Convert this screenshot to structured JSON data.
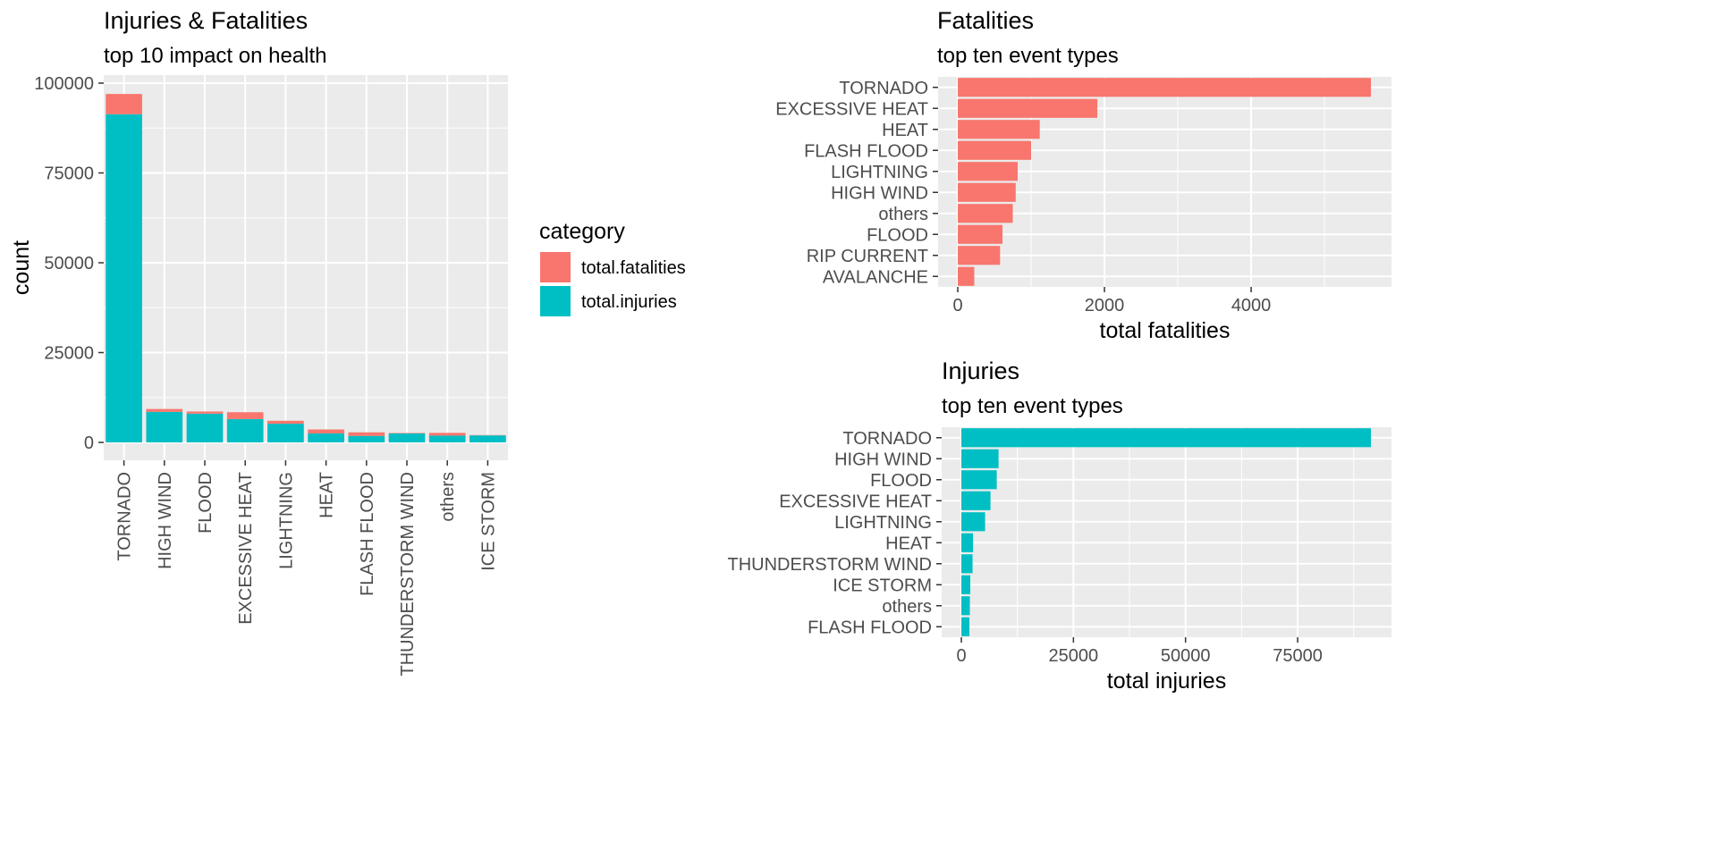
{
  "colors": {
    "fatalities": "#F8766D",
    "injuries": "#00BFC4",
    "panel": "#EBEBEB",
    "grid": "#FFFFFF",
    "tick_text": "#4D4D4D",
    "tick_mark": "#333333"
  },
  "chart_data": [
    {
      "type": "bar",
      "stacked": true,
      "orientation": "vertical",
      "title": "Injuries & Fatalities",
      "subtitle": "top 10 impact on health",
      "xlabel": "",
      "ylabel": "count",
      "categories": [
        "TORNADO",
        "HIGH WIND",
        "FLOOD",
        "EXCESSIVE HEAT",
        "LIGHTNING",
        "HEAT",
        "FLASH FLOOD",
        "THUNDERSTORM WIND",
        "others",
        "ICE STORM"
      ],
      "series": [
        {
          "name": "total.injuries",
          "values": [
            91346,
            8500,
            8000,
            6500,
            5200,
            2500,
            1800,
            2500,
            1900,
            1950
          ]
        },
        {
          "name": "total.fatalities",
          "values": [
            5633,
            800,
            600,
            1900,
            820,
            1100,
            1000,
            130,
            750,
            90
          ]
        }
      ],
      "ylim": [
        0,
        100000
      ],
      "yticks": [
        "0",
        "25000",
        "50000",
        "75000",
        "100000"
      ],
      "legend": {
        "title": "category",
        "position": "right",
        "items": [
          "total.fatalities",
          "total.injuries"
        ]
      },
      "grid": true
    },
    {
      "type": "bar",
      "orientation": "horizontal",
      "title": "Fatalities",
      "subtitle": "top ten event types",
      "xlabel": "total fatalities",
      "ylabel": "",
      "categories": [
        "TORNADO",
        "EXCESSIVE HEAT",
        "HEAT",
        "FLASH FLOOD",
        "LIGHTNING",
        "HIGH WIND",
        "others",
        "FLOOD",
        "RIP CURRENT",
        "AVALANCHE"
      ],
      "values": [
        5633,
        1903,
        1118,
        1000,
        817,
        790,
        750,
        610,
        577,
        225
      ],
      "xlim": [
        0,
        5633
      ],
      "xticks": [
        "0",
        "2000",
        "4000"
      ],
      "grid": true
    },
    {
      "type": "bar",
      "orientation": "horizontal",
      "title": "Injuries",
      "subtitle": "top ten event types",
      "xlabel": "total injuries",
      "ylabel": "",
      "categories": [
        "TORNADO",
        "HIGH WIND",
        "FLOOD",
        "EXCESSIVE HEAT",
        "LIGHTNING",
        "HEAT",
        "THUNDERSTORM WIND",
        "ICE STORM",
        "others",
        "FLASH FLOOD"
      ],
      "values": [
        91346,
        8300,
        7900,
        6500,
        5300,
        2600,
        2500,
        2000,
        1900,
        1800
      ],
      "xlim": [
        0,
        91346
      ],
      "xticks": [
        "0",
        "25000",
        "50000",
        "75000"
      ],
      "grid": true
    }
  ]
}
